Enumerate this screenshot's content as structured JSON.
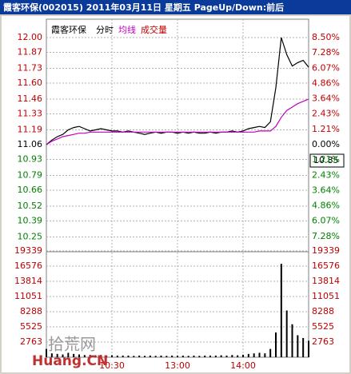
{
  "chart_data": {
    "type": "line",
    "title": "霞客环保(002015) 2011年03月11日 星期五 PageUp/Down:前后",
    "stock_name": "霞客环保",
    "cursor_label": "10.85",
    "watermark": [
      "拾荒网",
      "Huang.CN"
    ],
    "x": [
      0,
      5,
      10,
      15,
      20,
      25,
      30,
      35,
      40,
      45,
      50,
      55,
      60,
      65,
      70,
      75,
      80,
      85,
      90,
      95,
      100,
      105,
      110,
      115,
      120,
      125,
      130,
      135,
      140,
      145,
      150,
      155,
      160,
      165,
      170,
      175,
      180,
      185,
      190,
      195,
      200,
      205,
      210,
      215,
      220,
      225,
      230,
      235,
      240
    ],
    "xlim": [
      0,
      240
    ],
    "xticks": [
      {
        "value": 60,
        "label": "10:30"
      },
      {
        "value": 120,
        "label": "13:00"
      },
      {
        "value": 180,
        "label": "14:00"
      }
    ],
    "series": [
      {
        "name": "分时",
        "color": "#000000",
        "values": [
          11.06,
          11.1,
          11.13,
          11.15,
          11.19,
          11.21,
          11.22,
          11.2,
          11.18,
          11.19,
          11.2,
          11.19,
          11.18,
          11.18,
          11.17,
          11.18,
          11.17,
          11.16,
          11.15,
          11.16,
          11.17,
          11.16,
          11.17,
          11.17,
          11.16,
          11.17,
          11.16,
          11.17,
          11.16,
          11.16,
          11.17,
          11.16,
          11.17,
          11.17,
          11.18,
          11.17,
          11.18,
          11.2,
          11.21,
          11.22,
          11.21,
          11.26,
          11.56,
          12.0,
          11.85,
          11.75,
          11.78,
          11.8,
          11.74
        ]
      },
      {
        "name": "均线",
        "color": "#c000c0",
        "values": [
          11.06,
          11.09,
          11.11,
          11.13,
          11.14,
          11.15,
          11.16,
          11.16,
          11.17,
          11.17,
          11.17,
          11.17,
          11.17,
          11.17,
          11.17,
          11.17,
          11.17,
          11.17,
          11.17,
          11.17,
          11.17,
          11.17,
          11.17,
          11.17,
          11.17,
          11.17,
          11.17,
          11.17,
          11.17,
          11.17,
          11.17,
          11.17,
          11.17,
          11.17,
          11.17,
          11.17,
          11.17,
          11.17,
          11.17,
          11.18,
          11.18,
          11.18,
          11.22,
          11.3,
          11.36,
          11.39,
          11.42,
          11.44,
          11.46
        ]
      }
    ],
    "ylim": [
      10.12,
      12.0
    ],
    "yticks": [
      {
        "value": 12.0,
        "label": "12.00"
      },
      {
        "value": 11.87,
        "label": "11.87"
      },
      {
        "value": 11.73,
        "label": "11.73"
      },
      {
        "value": 11.6,
        "label": "11.60"
      },
      {
        "value": 11.46,
        "label": "11.46"
      },
      {
        "value": 11.33,
        "label": "11.33"
      },
      {
        "value": 11.19,
        "label": "11.19"
      },
      {
        "value": 11.06,
        "label": "11.06"
      },
      {
        "value": 10.93,
        "label": "10.93"
      },
      {
        "value": 10.79,
        "label": "10.79"
      },
      {
        "value": 10.66,
        "label": "10.66"
      },
      {
        "value": 10.52,
        "label": "10.52"
      },
      {
        "value": 10.39,
        "label": "10.39"
      },
      {
        "value": 10.25,
        "label": "10.25"
      }
    ],
    "y2lim": [
      -8.5,
      8.5
    ],
    "y2ticks": [
      {
        "value": 8.5,
        "label": "8.50%"
      },
      {
        "value": 7.28,
        "label": "7.28%"
      },
      {
        "value": 6.07,
        "label": "6.07%"
      },
      {
        "value": 4.86,
        "label": "4.86%"
      },
      {
        "value": 3.64,
        "label": "3.64%"
      },
      {
        "value": 2.43,
        "label": "2.43%"
      },
      {
        "value": 1.21,
        "label": "1.21%"
      },
      {
        "value": 0,
        "label": "0.00%"
      },
      {
        "value": -1.21,
        "label": "1.21%"
      },
      {
        "value": -2.43,
        "label": "2.43%"
      },
      {
        "value": -3.64,
        "label": "3.64%"
      },
      {
        "value": -4.86,
        "label": "4.86%"
      },
      {
        "value": -6.07,
        "label": "6.07%"
      },
      {
        "value": -7.28,
        "label": "7.28%"
      }
    ],
    "volume": {
      "name": "成交量",
      "color": "#000000",
      "values": [
        1500,
        700,
        600,
        500,
        800,
        600,
        500,
        400,
        400,
        350,
        400,
        300,
        350,
        300,
        300,
        300,
        250,
        300,
        250,
        300,
        250,
        300,
        250,
        300,
        250,
        300,
        250,
        300,
        250,
        300,
        300,
        300,
        350,
        300,
        400,
        350,
        450,
        600,
        700,
        800,
        700,
        1500,
        4500,
        17000,
        8500,
        6000,
        4000,
        3500,
        3000
      ],
      "ylim": [
        0,
        19339
      ],
      "yticks": [
        19339,
        16576,
        13814,
        11051,
        8288,
        5525,
        2763
      ]
    },
    "grid": true
  }
}
